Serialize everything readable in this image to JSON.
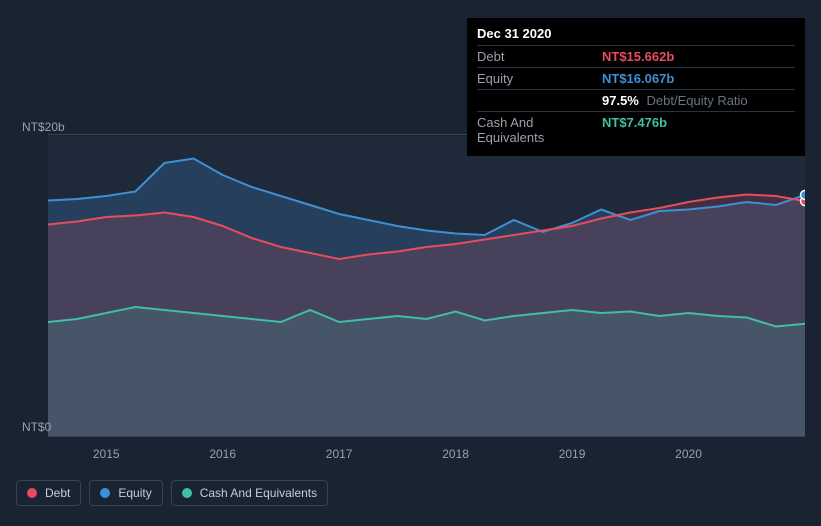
{
  "tooltip": {
    "date": "Dec 31 2020",
    "rows": {
      "debt": {
        "label": "Debt",
        "value": "NT$15.662b"
      },
      "equity": {
        "label": "Equity",
        "value": "NT$16.067b"
      },
      "ratio": {
        "pct": "97.5%",
        "text": "Debt/Equity Ratio"
      },
      "cash": {
        "label": "Cash And Equivalents",
        "value": "NT$7.476b"
      }
    }
  },
  "chart": {
    "background_color": "#1a2332",
    "plot_background": "#1e2a3a",
    "grid_color": "#3a4250",
    "ylim": [
      0,
      20
    ],
    "y_unit_prefix": "NT$",
    "y_unit_suffix": "b",
    "y_ticks": {
      "top": "NT$20b",
      "bottom": "NT$0"
    },
    "x_domain": [
      2014.5,
      2021.0
    ],
    "x_ticks": [
      "2015",
      "2016",
      "2017",
      "2018",
      "2019",
      "2020"
    ],
    "series": {
      "debt": {
        "color": "#e84c5f",
        "fill_opacity": 0.18,
        "line_width": 2,
        "data": [
          [
            2014.5,
            14.1
          ],
          [
            2014.75,
            14.3
          ],
          [
            2015.0,
            14.6
          ],
          [
            2015.25,
            14.7
          ],
          [
            2015.5,
            14.9
          ],
          [
            2015.75,
            14.6
          ],
          [
            2016.0,
            14.0
          ],
          [
            2016.25,
            13.2
          ],
          [
            2016.5,
            12.6
          ],
          [
            2016.75,
            12.2
          ],
          [
            2017.0,
            11.8
          ],
          [
            2017.25,
            12.1
          ],
          [
            2017.5,
            12.3
          ],
          [
            2017.75,
            12.6
          ],
          [
            2018.0,
            12.8
          ],
          [
            2018.25,
            13.1
          ],
          [
            2018.5,
            13.4
          ],
          [
            2018.75,
            13.7
          ],
          [
            2019.0,
            14.0
          ],
          [
            2019.25,
            14.5
          ],
          [
            2019.5,
            14.9
          ],
          [
            2019.75,
            15.2
          ],
          [
            2020.0,
            15.6
          ],
          [
            2020.25,
            15.9
          ],
          [
            2020.5,
            16.1
          ],
          [
            2020.75,
            16.0
          ],
          [
            2021.0,
            15.66
          ]
        ]
      },
      "equity": {
        "color": "#3f8fd6",
        "fill_opacity": 0.22,
        "line_width": 2,
        "data": [
          [
            2014.5,
            15.7
          ],
          [
            2014.75,
            15.8
          ],
          [
            2015.0,
            16.0
          ],
          [
            2015.25,
            16.3
          ],
          [
            2015.5,
            18.2
          ],
          [
            2015.75,
            18.5
          ],
          [
            2016.0,
            17.4
          ],
          [
            2016.25,
            16.6
          ],
          [
            2016.5,
            16.0
          ],
          [
            2016.75,
            15.4
          ],
          [
            2017.0,
            14.8
          ],
          [
            2017.25,
            14.4
          ],
          [
            2017.5,
            14.0
          ],
          [
            2017.75,
            13.7
          ],
          [
            2018.0,
            13.5
          ],
          [
            2018.25,
            13.4
          ],
          [
            2018.5,
            14.4
          ],
          [
            2018.75,
            13.6
          ],
          [
            2019.0,
            14.2
          ],
          [
            2019.25,
            15.1
          ],
          [
            2019.5,
            14.4
          ],
          [
            2019.75,
            15.0
          ],
          [
            2020.0,
            15.1
          ],
          [
            2020.25,
            15.3
          ],
          [
            2020.5,
            15.6
          ],
          [
            2020.75,
            15.4
          ],
          [
            2021.0,
            16.07
          ]
        ]
      },
      "cash": {
        "color": "#3fbfa5",
        "fill_opacity": 0.16,
        "line_width": 2,
        "data": [
          [
            2014.5,
            7.6
          ],
          [
            2014.75,
            7.8
          ],
          [
            2015.0,
            8.2
          ],
          [
            2015.25,
            8.6
          ],
          [
            2015.5,
            8.4
          ],
          [
            2015.75,
            8.2
          ],
          [
            2016.0,
            8.0
          ],
          [
            2016.25,
            7.8
          ],
          [
            2016.5,
            7.6
          ],
          [
            2016.75,
            8.4
          ],
          [
            2017.0,
            7.6
          ],
          [
            2017.25,
            7.8
          ],
          [
            2017.5,
            8.0
          ],
          [
            2017.75,
            7.8
          ],
          [
            2018.0,
            8.3
          ],
          [
            2018.25,
            7.7
          ],
          [
            2018.5,
            8.0
          ],
          [
            2018.75,
            8.2
          ],
          [
            2019.0,
            8.4
          ],
          [
            2019.25,
            8.2
          ],
          [
            2019.5,
            8.3
          ],
          [
            2019.75,
            8.0
          ],
          [
            2020.0,
            8.2
          ],
          [
            2020.25,
            8.0
          ],
          [
            2020.5,
            7.9
          ],
          [
            2020.75,
            7.3
          ],
          [
            2021.0,
            7.48
          ]
        ]
      }
    }
  },
  "legend": {
    "debt": {
      "label": "Debt",
      "color": "#e84c5f"
    },
    "equity": {
      "label": "Equity",
      "color": "#3f8fd6"
    },
    "cash": {
      "label": "Cash And Equivalents",
      "color": "#3fbfa5"
    }
  }
}
